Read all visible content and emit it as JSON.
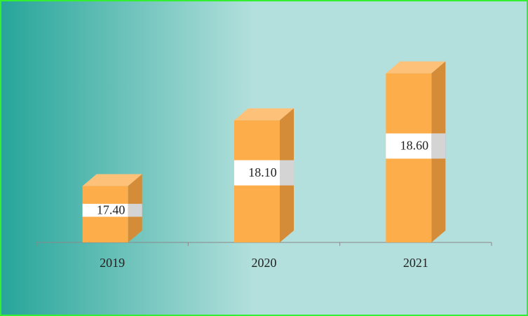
{
  "chart_data": {
    "type": "bar3d",
    "categories": [
      "2019",
      "2020",
      "2021"
    ],
    "values": [
      17.4,
      18.1,
      18.6
    ],
    "value_labels": [
      "17.40",
      "18.10",
      "18.60"
    ],
    "color": "#fdae4b",
    "ylim": [
      16.8,
      19
    ]
  }
}
